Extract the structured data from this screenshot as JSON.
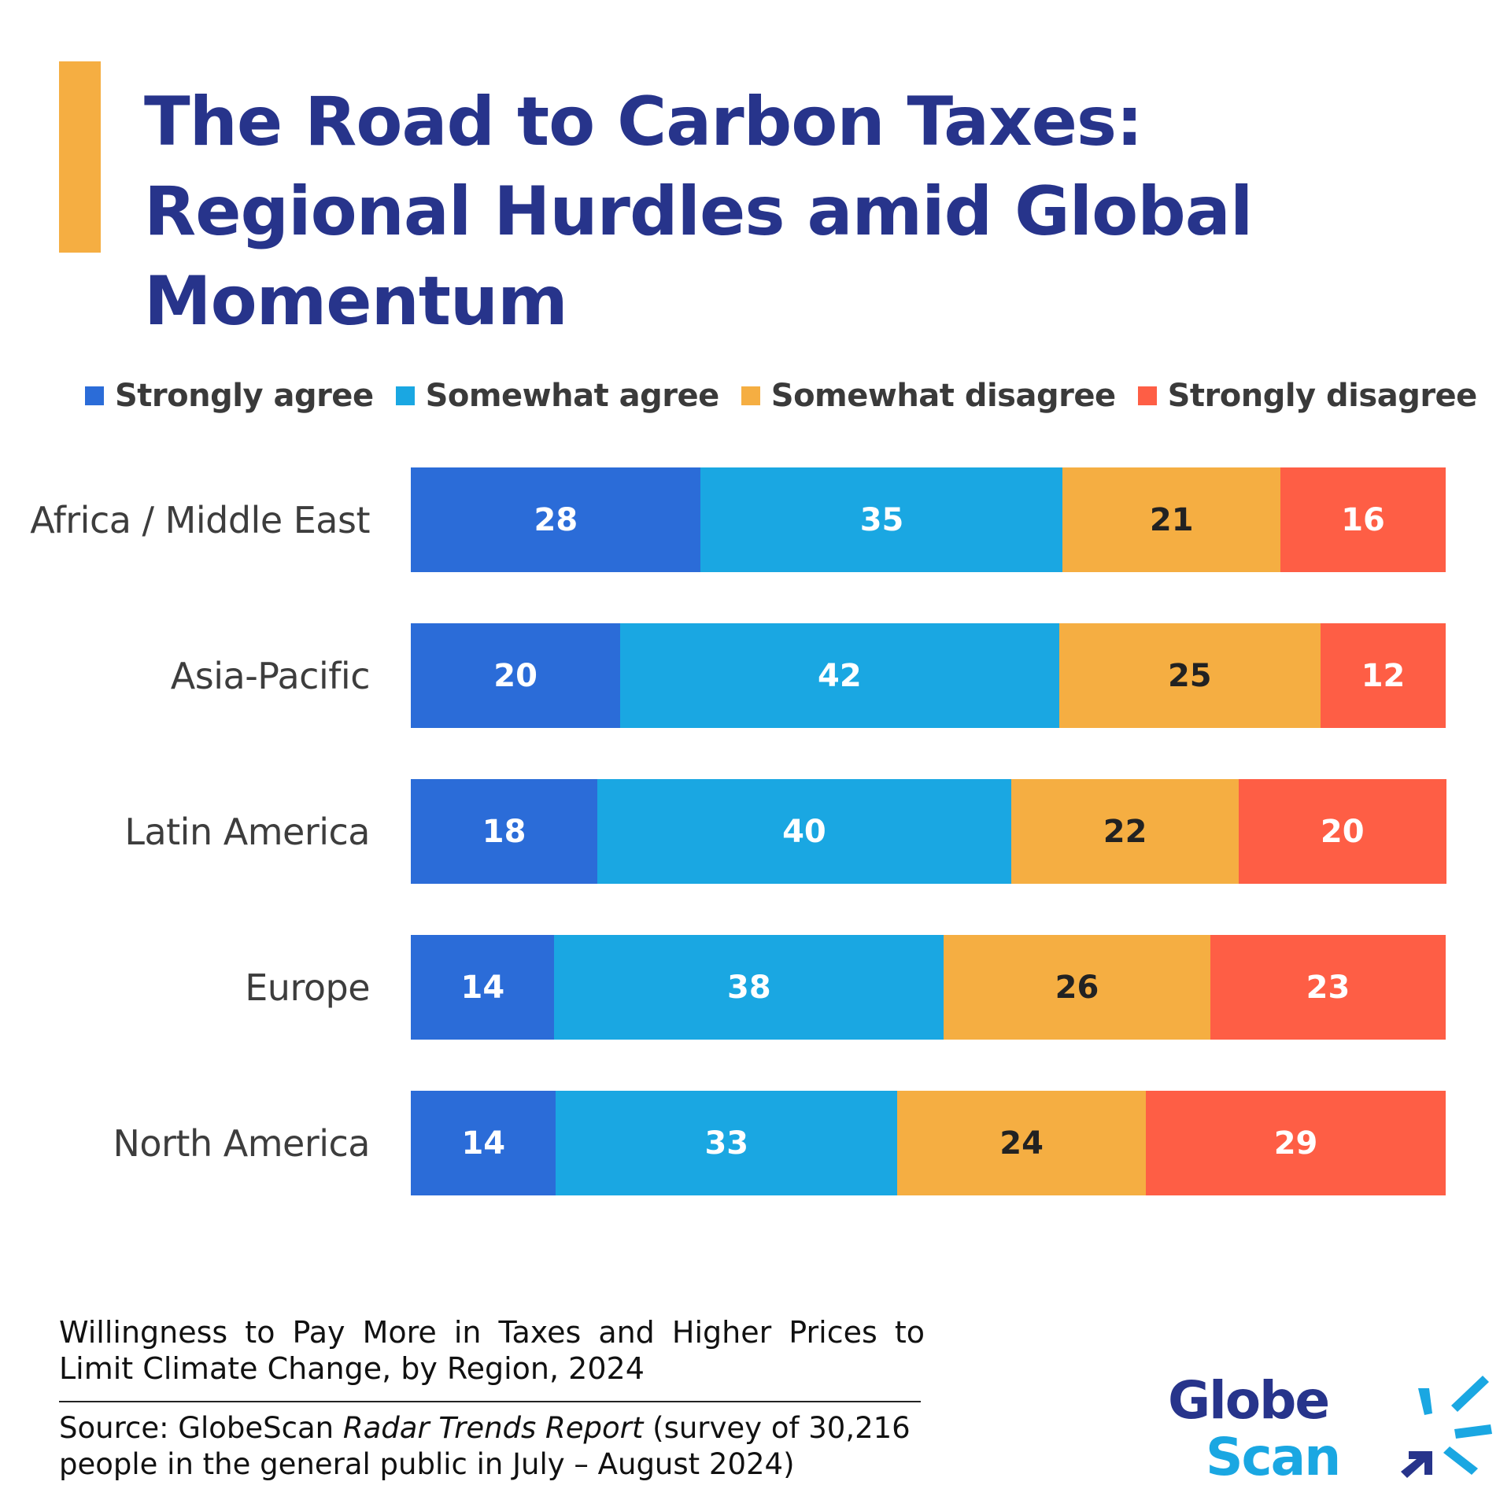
{
  "title": "The Road to Carbon Taxes: Regional Hurdles amid Global Momentum",
  "caption": "Willingness to Pay More in Taxes and Higher Prices to Limit Climate Change, by Region, 2024",
  "source": {
    "prefix": "Source: GlobeScan ",
    "report": "Radar Trends Report",
    "suffix": " (survey of 30,216 people in the general public in July – August 2024)"
  },
  "logo": {
    "line1": "Globe",
    "line2": "Scan"
  },
  "chart_data": {
    "type": "bar",
    "orientation": "horizontal",
    "stacked": true,
    "categories": [
      "Africa / Middle East",
      "Asia-Pacific",
      "Latin America",
      "Europe",
      "North America"
    ],
    "series": [
      {
        "name": "Strongly agree",
        "color": "#2B6CD8",
        "label_color": "#ffffff",
        "values": [
          28,
          20,
          18,
          14,
          14
        ]
      },
      {
        "name": "Somewhat agree",
        "color": "#1AA7E2",
        "label_color": "#ffffff",
        "values": [
          35,
          42,
          40,
          38,
          33
        ]
      },
      {
        "name": "Somewhat disagree",
        "color": "#F5AE42",
        "label_color": "#222222",
        "values": [
          21,
          25,
          22,
          26,
          24
        ]
      },
      {
        "name": "Strongly disagree",
        "color": "#FE5E45",
        "label_color": "#ffffff",
        "values": [
          16,
          12,
          20,
          23,
          29
        ]
      }
    ],
    "legend_position": "top",
    "grid": false,
    "data_labels": true
  },
  "colors": {
    "title": "#27348B",
    "accent": "#F5AE42",
    "logo_dark": "#27348B",
    "logo_light": "#1AA7E2"
  }
}
